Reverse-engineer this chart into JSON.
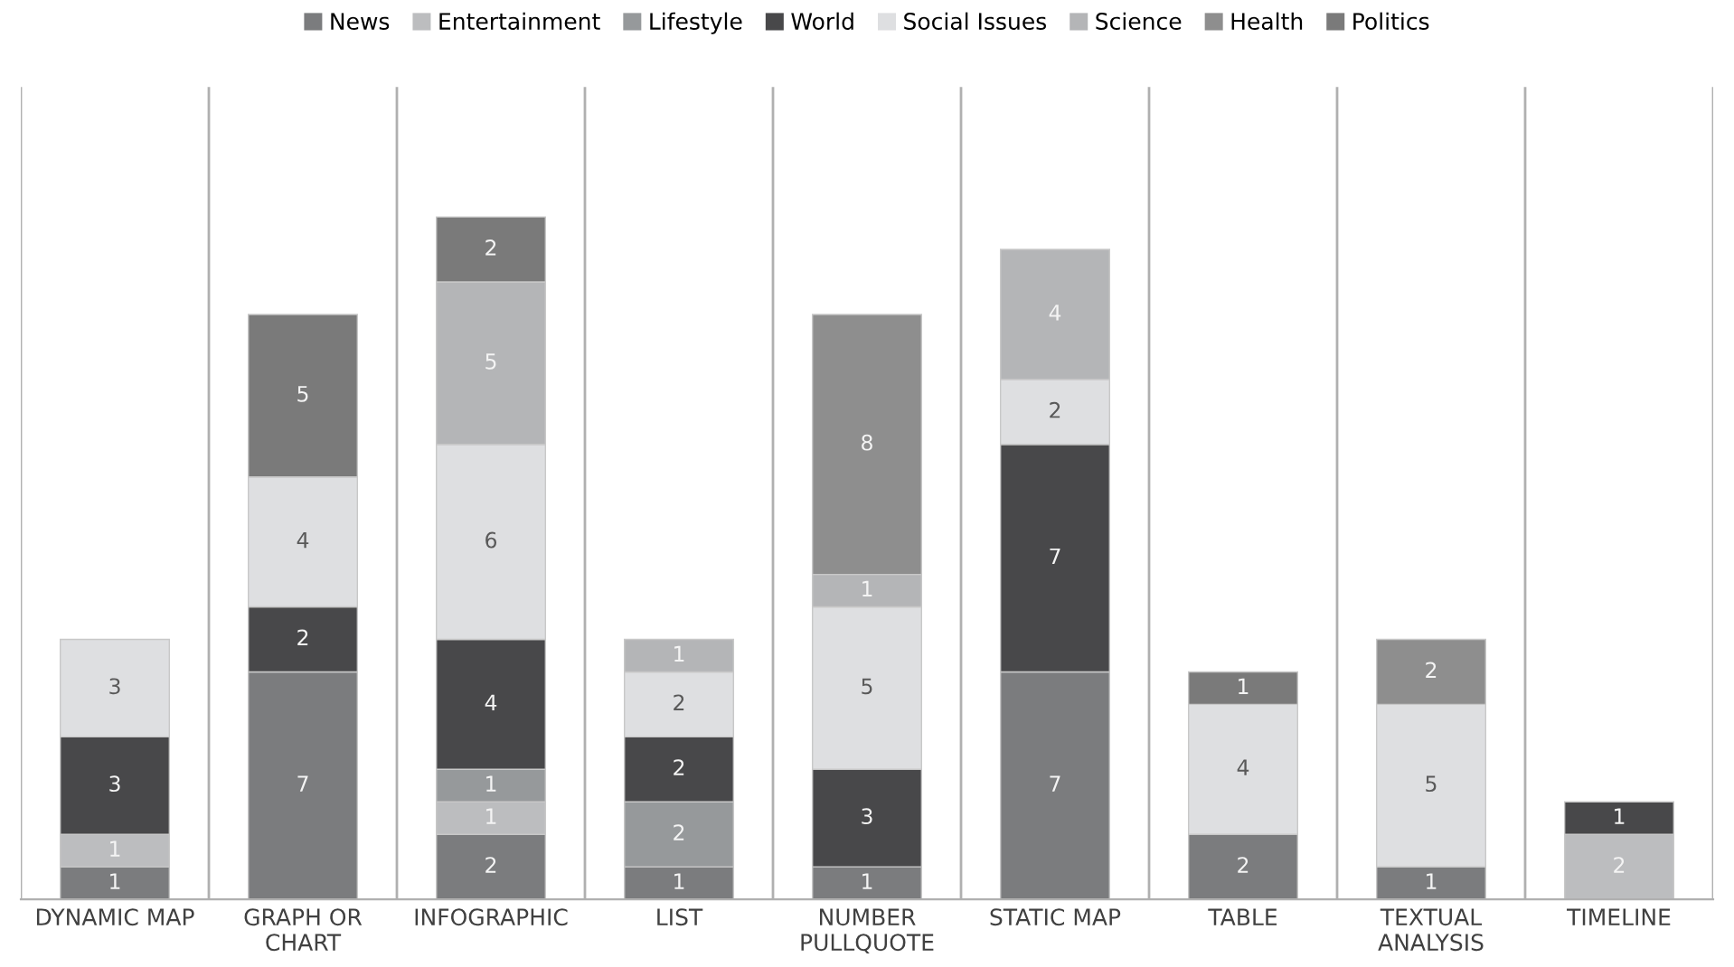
{
  "chart_data": {
    "type": "bar",
    "stacked": true,
    "data_labels": true,
    "legend": "top",
    "grid": "x",
    "tick_labels": "x",
    "ylim": [
      0,
      25
    ],
    "categories": [
      "DYNAMIC MAP",
      "GRAPH OR\nCHART",
      "INFOGRAPHIC",
      "LIST",
      "NUMBER\nPULLQUOTE",
      "STATIC MAP",
      "TABLE",
      "TEXTUAL\nANALYSIS",
      "TIMELINE"
    ],
    "series": [
      {
        "name": "News",
        "color": "#7b7c7e",
        "values": [
          1,
          7,
          2,
          1,
          1,
          7,
          2,
          1,
          null
        ]
      },
      {
        "name": "Entertainment",
        "color": "#bcbdbf",
        "values": [
          1,
          null,
          1,
          null,
          null,
          null,
          null,
          null,
          2
        ]
      },
      {
        "name": "Lifestyle",
        "color": "#96999b",
        "values": [
          null,
          null,
          1,
          2,
          null,
          null,
          null,
          null,
          null
        ]
      },
      {
        "name": "World",
        "color": "#48484a",
        "values": [
          3,
          2,
          4,
          2,
          3,
          7,
          null,
          null,
          1
        ]
      },
      {
        "name": "Social Issues",
        "color": "#dedfe1",
        "values": [
          3,
          4,
          6,
          2,
          5,
          2,
          4,
          5,
          null
        ]
      },
      {
        "name": "Science",
        "color": "#b4b5b7",
        "values": [
          null,
          null,
          5,
          1,
          1,
          4,
          null,
          null,
          null
        ]
      },
      {
        "name": "Health",
        "color": "#8e8e8e",
        "values": [
          null,
          null,
          null,
          null,
          8,
          null,
          null,
          2,
          null
        ]
      },
      {
        "name": "Politics",
        "color": "#7a7a7a",
        "values": [
          null,
          5,
          2,
          null,
          null,
          null,
          1,
          null,
          null
        ]
      }
    ]
  }
}
